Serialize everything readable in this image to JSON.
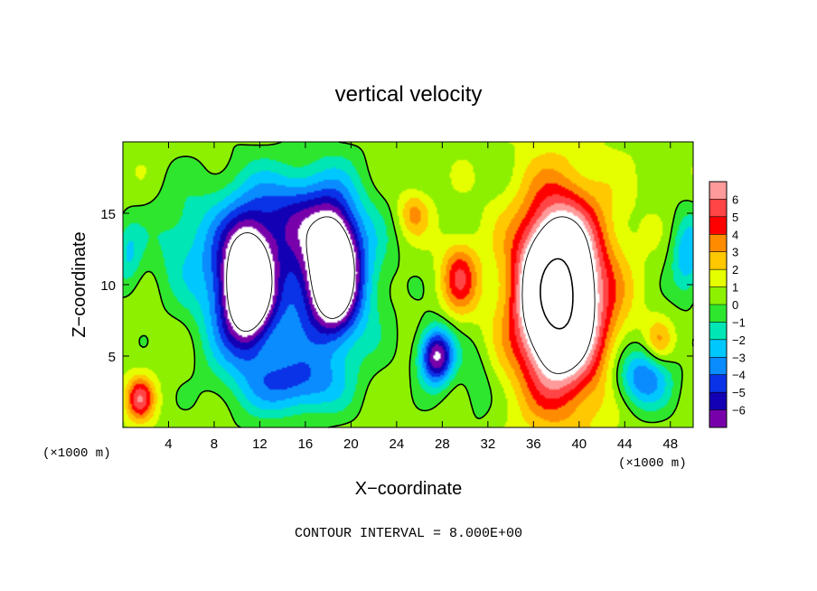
{
  "chart_data": {
    "type": "heatmap",
    "title": "vertical velocity",
    "xlabel": "X−coordinate",
    "ylabel": "Z−coordinate",
    "x_unit_left": "(×1000 m)",
    "x_unit_right": "(×1000 m)",
    "xlim": [
      0,
      50
    ],
    "ylim": [
      0,
      20
    ],
    "x_ticks": [
      4,
      8,
      12,
      16,
      20,
      24,
      28,
      32,
      36,
      40,
      44,
      48
    ],
    "y_ticks": [
      5,
      10,
      15
    ],
    "colorbar": {
      "levels": [
        6,
        5,
        4,
        3,
        2,
        1,
        0,
        -1,
        -2,
        -3,
        -4,
        -5,
        -6
      ],
      "labels": [
        "6",
        "5",
        "4",
        "3",
        "2",
        "1",
        "0",
        "−1",
        "−2",
        "−3",
        "−4",
        "−5",
        "−6"
      ],
      "colors": [
        "#ff9a9a",
        "#ff4545",
        "#ff0000",
        "#ff8c00",
        "#ffc800",
        "#e6ff00",
        "#8cf000",
        "#2ee62e",
        "#00e6b4",
        "#00c8ff",
        "#0a8cff",
        "#0a32e6",
        "#1400b4",
        "#7800aa"
      ]
    },
    "footer": "CONTOUR INTERVAL = 8.000E+00",
    "features": [
      {
        "kind": "downdraft",
        "x": 11,
        "z": 10,
        "value": -12
      },
      {
        "kind": "downdraft",
        "x": 18,
        "z": 11,
        "value": -12
      },
      {
        "kind": "updraft",
        "x": 38.5,
        "z": 9,
        "value": 16
      },
      {
        "kind": "updraft",
        "x": 29.5,
        "z": 10.5,
        "value": 4.5
      },
      {
        "kind": "updraft",
        "x": 25.5,
        "z": 15,
        "value": 3
      },
      {
        "kind": "updraft",
        "x": 1.5,
        "z": 2,
        "value": 5
      },
      {
        "kind": "downdraft",
        "x": 27.5,
        "z": 5,
        "value": -8
      },
      {
        "kind": "downdraft",
        "x": 45.5,
        "z": 3.5,
        "value": -5
      },
      {
        "kind": "downdraft",
        "x": 49.5,
        "z": 12,
        "value": -3
      }
    ]
  }
}
